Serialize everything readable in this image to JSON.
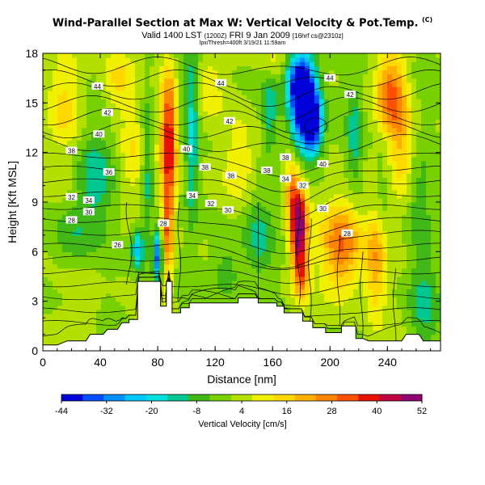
{
  "title": {
    "main": "Wind-Parallel Section at Max W: Vertical Velocity & Pot.Temp.",
    "mark": "(C)"
  },
  "subtitle": {
    "valid": "Valid 1400 LST",
    "utc": "(1200Z)",
    "date": "FRI 9 Jan 2009",
    "run": "[16hrf cs@2310z]",
    "small_line": "lpx/Thresh=400ft 3/19/21 11:59am"
  },
  "chart_data": {
    "type": "heatmap",
    "xlabel": "Distance [nm]",
    "ylabel": "Height [Kft MSL]",
    "xlim": [
      0,
      277
    ],
    "ylim": [
      0,
      18
    ],
    "xticks": [
      0,
      40,
      80,
      120,
      160,
      200,
      240
    ],
    "yticks": [
      0,
      3,
      6,
      9,
      12,
      15,
      18
    ],
    "colorbar": {
      "label": "Vertical Velocity [cm/s]",
      "ticks": [
        -44,
        -32,
        -20,
        -8,
        4,
        16,
        28,
        40,
        52
      ],
      "colors": [
        "#0000d8",
        "#0050ff",
        "#0090ff",
        "#00c8ff",
        "#00e0e0",
        "#00c890",
        "#40b818",
        "#78d000",
        "#b4e000",
        "#f0f000",
        "#ffd800",
        "#ffb000",
        "#ff8400",
        "#ff5000",
        "#e81000",
        "#c00040",
        "#900070"
      ]
    },
    "contours": {
      "name": "Potential Temperature",
      "labels": [
        {
          "v": "44",
          "x": 38,
          "y": 16.0
        },
        {
          "v": "44",
          "x": 124,
          "y": 16.2
        },
        {
          "v": "44",
          "x": 200,
          "y": 16.5
        },
        {
          "v": "42",
          "x": 45,
          "y": 14.4
        },
        {
          "v": "42",
          "x": 130,
          "y": 13.9
        },
        {
          "v": "42",
          "x": 214,
          "y": 15.5
        },
        {
          "v": "40",
          "x": 39,
          "y": 13.1
        },
        {
          "v": "40",
          "x": 100,
          "y": 12.2
        },
        {
          "v": "40",
          "x": 195,
          "y": 11.3
        },
        {
          "v": "38",
          "x": 20,
          "y": 12.1
        },
        {
          "v": "38",
          "x": 113,
          "y": 11.1
        },
        {
          "v": "38",
          "x": 131,
          "y": 10.6
        },
        {
          "v": "38",
          "x": 156,
          "y": 10.9
        },
        {
          "v": "38",
          "x": 169,
          "y": 11.7
        },
        {
          "v": "36",
          "x": 46,
          "y": 10.8
        },
        {
          "v": "34",
          "x": 32,
          "y": 9.1
        },
        {
          "v": "34",
          "x": 104,
          "y": 9.4
        },
        {
          "v": "34",
          "x": 169,
          "y": 10.4
        },
        {
          "v": "32",
          "x": 20,
          "y": 9.3
        },
        {
          "v": "32",
          "x": 117,
          "y": 8.9
        },
        {
          "v": "32",
          "x": 181,
          "y": 10.0
        },
        {
          "v": "30",
          "x": 32,
          "y": 8.4
        },
        {
          "v": "30",
          "x": 129,
          "y": 8.5
        },
        {
          "v": "30",
          "x": 195,
          "y": 8.6
        },
        {
          "v": "28",
          "x": 20,
          "y": 7.9
        },
        {
          "v": "28",
          "x": 84,
          "y": 7.7
        },
        {
          "v": "28",
          "x": 212,
          "y": 7.1
        },
        {
          "v": "26",
          "x": 52,
          "y": 6.4
        }
      ]
    }
  }
}
